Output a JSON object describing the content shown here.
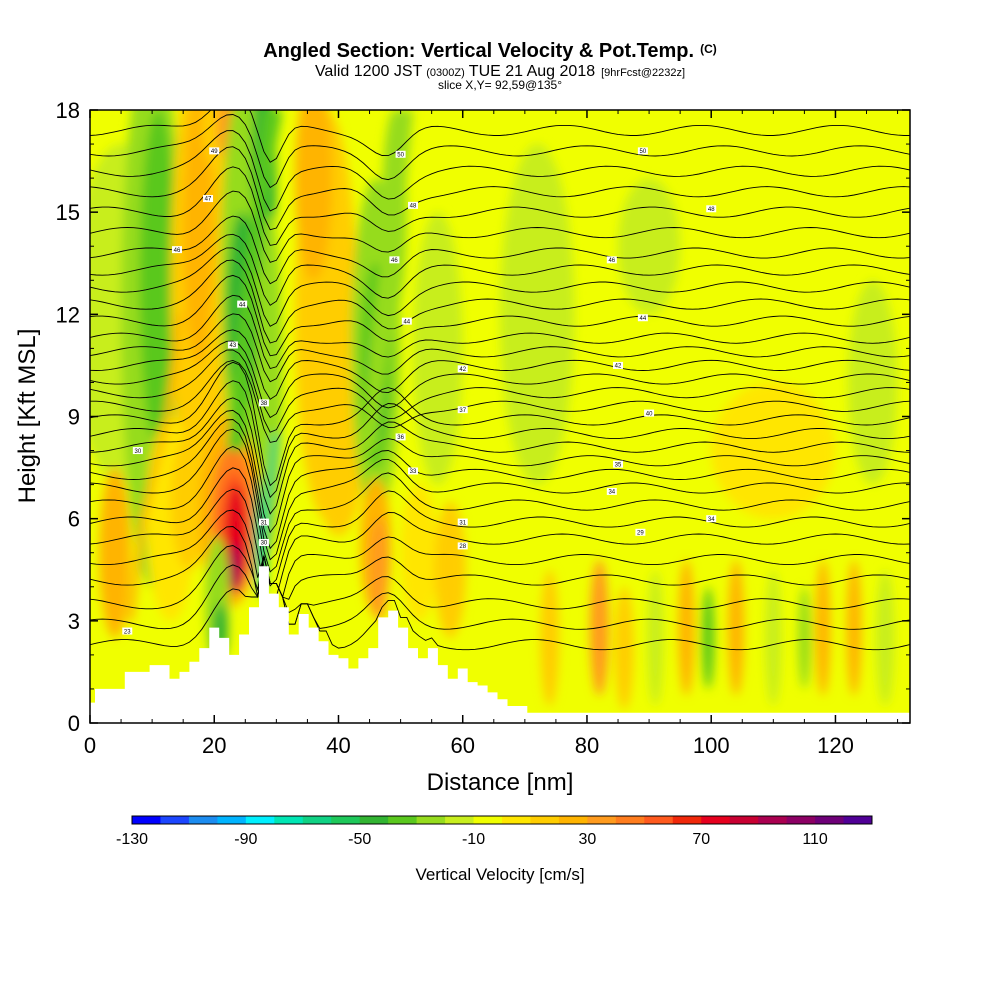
{
  "title": {
    "main": "Angled Section: Vertical Velocity & Pot.Temp.",
    "main_suffix": "(C)",
    "valid_a": "Valid 1200 JST",
    "valid_b": "(0300Z)",
    "valid_c": "TUE 21 Aug 2018",
    "valid_d": "[9hrFcst@2232z]",
    "slice": "slice X,Y= 92,59@135°"
  },
  "chart_data": {
    "type": "heatmap",
    "xlabel": "Distance [nm]",
    "ylabel": "Height [Kft MSL]",
    "xlim": [
      0,
      132
    ],
    "ylim": [
      0,
      18
    ],
    "x_ticks": [
      "0",
      "20",
      "40",
      "60",
      "80",
      "100",
      "120"
    ],
    "y_ticks": [
      "0",
      "3",
      "6",
      "9",
      "12",
      "15",
      "18"
    ],
    "grid": false,
    "colorbar": {
      "label": "Vertical Velocity [cm/s]",
      "min": -130,
      "max": 130,
      "step": 10,
      "tick_labels": [
        "-130",
        "-90",
        "-50",
        "-10",
        "30",
        "70",
        "110"
      ],
      "colors": [
        "#0000ff",
        "#1c46ff",
        "#1c8cf0",
        "#00b4ff",
        "#00f0ff",
        "#00e6b4",
        "#10d284",
        "#1ec85a",
        "#32b432",
        "#5ac81e",
        "#96dc1e",
        "#c8ee1e",
        "#f0ff00",
        "#ffe600",
        "#ffcd00",
        "#ffb400",
        "#ff9b1e",
        "#ff7d1e",
        "#ff5a1e",
        "#f0280a",
        "#e6001e",
        "#c80032",
        "#aa0050",
        "#8c0064",
        "#6e0078",
        "#500096"
      ]
    },
    "terrain_profile": {
      "x": [
        0,
        0.8,
        0.8,
        5.6,
        5.6,
        9.6,
        9.6,
        12.8,
        12.8,
        14.4,
        14.4,
        16,
        16,
        17.6,
        17.6,
        19.2,
        19.2,
        20.8,
        20.8,
        22.4,
        22.4,
        24,
        24,
        25.6,
        25.6,
        27.2,
        27.2,
        28.8,
        28.8,
        30.4,
        30.4,
        32,
        32,
        33.6,
        33.6,
        35.2,
        35.2,
        36.8,
        36.8,
        38.4,
        38.4,
        40,
        40,
        41.6,
        41.6,
        43.2,
        43.2,
        44.8,
        44.8,
        46.4,
        46.4,
        48,
        48,
        49.6,
        49.6,
        51.2,
        51.2,
        52.8,
        52.8,
        54.4,
        54.4,
        56,
        56,
        57.6,
        57.6,
        59.2,
        59.2,
        60.8,
        60.8,
        62.4,
        62.4,
        64,
        64,
        65.6,
        65.6,
        67.2,
        67.2,
        68.8,
        68.8,
        70.4,
        70.4,
        72,
        72,
        132
      ],
      "y": [
        0.6,
        0.6,
        1,
        1,
        1.5,
        1.5,
        1.7,
        1.7,
        1.3,
        1.3,
        1.5,
        1.5,
        1.8,
        1.8,
        2.2,
        2.2,
        2.8,
        2.8,
        2.5,
        2.5,
        2.0,
        2.0,
        2.6,
        2.6,
        3.4,
        3.4,
        4.6,
        4.6,
        3.8,
        3.8,
        3.4,
        3.4,
        2.6,
        2.6,
        3.2,
        3.2,
        2.8,
        2.8,
        2.4,
        2.4,
        2.0,
        2.0,
        1.9,
        1.9,
        1.6,
        1.6,
        1.9,
        1.9,
        2.2,
        2.2,
        3.1,
        3.1,
        3.3,
        3.3,
        2.8,
        2.8,
        2.2,
        2.2,
        1.9,
        1.9,
        2.2,
        2.2,
        1.7,
        1.7,
        1.3,
        1.3,
        1.6,
        1.6,
        1.2,
        1.2,
        1.1,
        1.1,
        0.9,
        0.9,
        0.7,
        0.7,
        0.5,
        0.5,
        0.5,
        0.5,
        0.3,
        0.3,
        0.3,
        0.3
      ]
    },
    "theta_levels": [
      {
        "theta": 23,
        "base": 2.3
      },
      {
        "theta": 24,
        "base": 2.9
      },
      {
        "theta": 25,
        "base": 3.5
      },
      {
        "theta": 26,
        "base": 4.2
      },
      {
        "theta": 27,
        "base": 4.8
      },
      {
        "theta": 28,
        "base": 5.4
      },
      {
        "theta": 29,
        "base": 5.9
      },
      {
        "theta": 30,
        "base": 6.4
      },
      {
        "theta": 31,
        "base": 6.9
      },
      {
        "theta": 32,
        "base": 7.3
      },
      {
        "theta": 33,
        "base": 7.7
      },
      {
        "theta": 34,
        "base": 8.1
      },
      {
        "theta": 35,
        "base": 8.5
      },
      {
        "theta": 36,
        "base": 8.9
      },
      {
        "theta": 37,
        "base": 9.3
      },
      {
        "theta": 38,
        "base": 9.7
      },
      {
        "theta": 39,
        "base": 10.1
      },
      {
        "theta": 40,
        "base": 10.5
      },
      {
        "theta": 41,
        "base": 10.9
      },
      {
        "theta": 42,
        "base": 11.3
      },
      {
        "theta": 43,
        "base": 11.8
      },
      {
        "theta": 44,
        "base": 12.3
      },
      {
        "theta": 45,
        "base": 12.8
      },
      {
        "theta": 46,
        "base": 13.3
      },
      {
        "theta": 47,
        "base": 13.8
      },
      {
        "theta": 48,
        "base": 14.4
      },
      {
        "theta": 49,
        "base": 15.0
      },
      {
        "theta": 50,
        "base": 15.6
      },
      {
        "theta": 51,
        "base": 16.2
      },
      {
        "theta": 52,
        "base": 16.8
      },
      {
        "theta": 53,
        "base": 17.4
      }
    ],
    "theta_labels": [
      {
        "text": "23",
        "x": 6,
        "y": 2.7
      },
      {
        "text": "28",
        "x": 60,
        "y": 5.2
      },
      {
        "text": "29",
        "x": 88.6,
        "y": 5.6
      },
      {
        "text": "31",
        "x": 60,
        "y": 5.9
      },
      {
        "text": "34",
        "x": 84,
        "y": 6.8
      },
      {
        "text": "34",
        "x": 100,
        "y": 6.0
      },
      {
        "text": "35",
        "x": 85,
        "y": 7.6
      },
      {
        "text": "37",
        "x": 60,
        "y": 9.2
      },
      {
        "text": "40",
        "x": 90,
        "y": 9.1
      },
      {
        "text": "42",
        "x": 60,
        "y": 10.4
      },
      {
        "text": "42",
        "x": 85,
        "y": 10.5
      },
      {
        "text": "44",
        "x": 89,
        "y": 11.9
      },
      {
        "text": "46",
        "x": 84,
        "y": 13.6
      },
      {
        "text": "48",
        "x": 100,
        "y": 15.1
      },
      {
        "text": "50",
        "x": 89,
        "y": 16.8
      },
      {
        "text": "50",
        "x": 50,
        "y": 16.7
      },
      {
        "text": "48",
        "x": 52,
        "y": 15.2
      },
      {
        "text": "46",
        "x": 49,
        "y": 13.6
      },
      {
        "text": "44",
        "x": 51,
        "y": 11.8
      },
      {
        "text": "49",
        "x": 20,
        "y": 16.8
      },
      {
        "text": "47",
        "x": 19,
        "y": 15.4
      },
      {
        "text": "46",
        "x": 14,
        "y": 13.9
      },
      {
        "text": "44",
        "x": 24.5,
        "y": 12.3
      },
      {
        "text": "43",
        "x": 23,
        "y": 11.1
      },
      {
        "text": "38",
        "x": 28,
        "y": 9.4
      },
      {
        "text": "36",
        "x": 50,
        "y": 8.4
      },
      {
        "text": "33",
        "x": 52,
        "y": 7.4
      },
      {
        "text": "31",
        "x": 28,
        "y": 5.9
      },
      {
        "text": "30",
        "x": 28,
        "y": 5.3
      },
      {
        "text": "30",
        "x": 7.7,
        "y": 8.0
      }
    ]
  }
}
